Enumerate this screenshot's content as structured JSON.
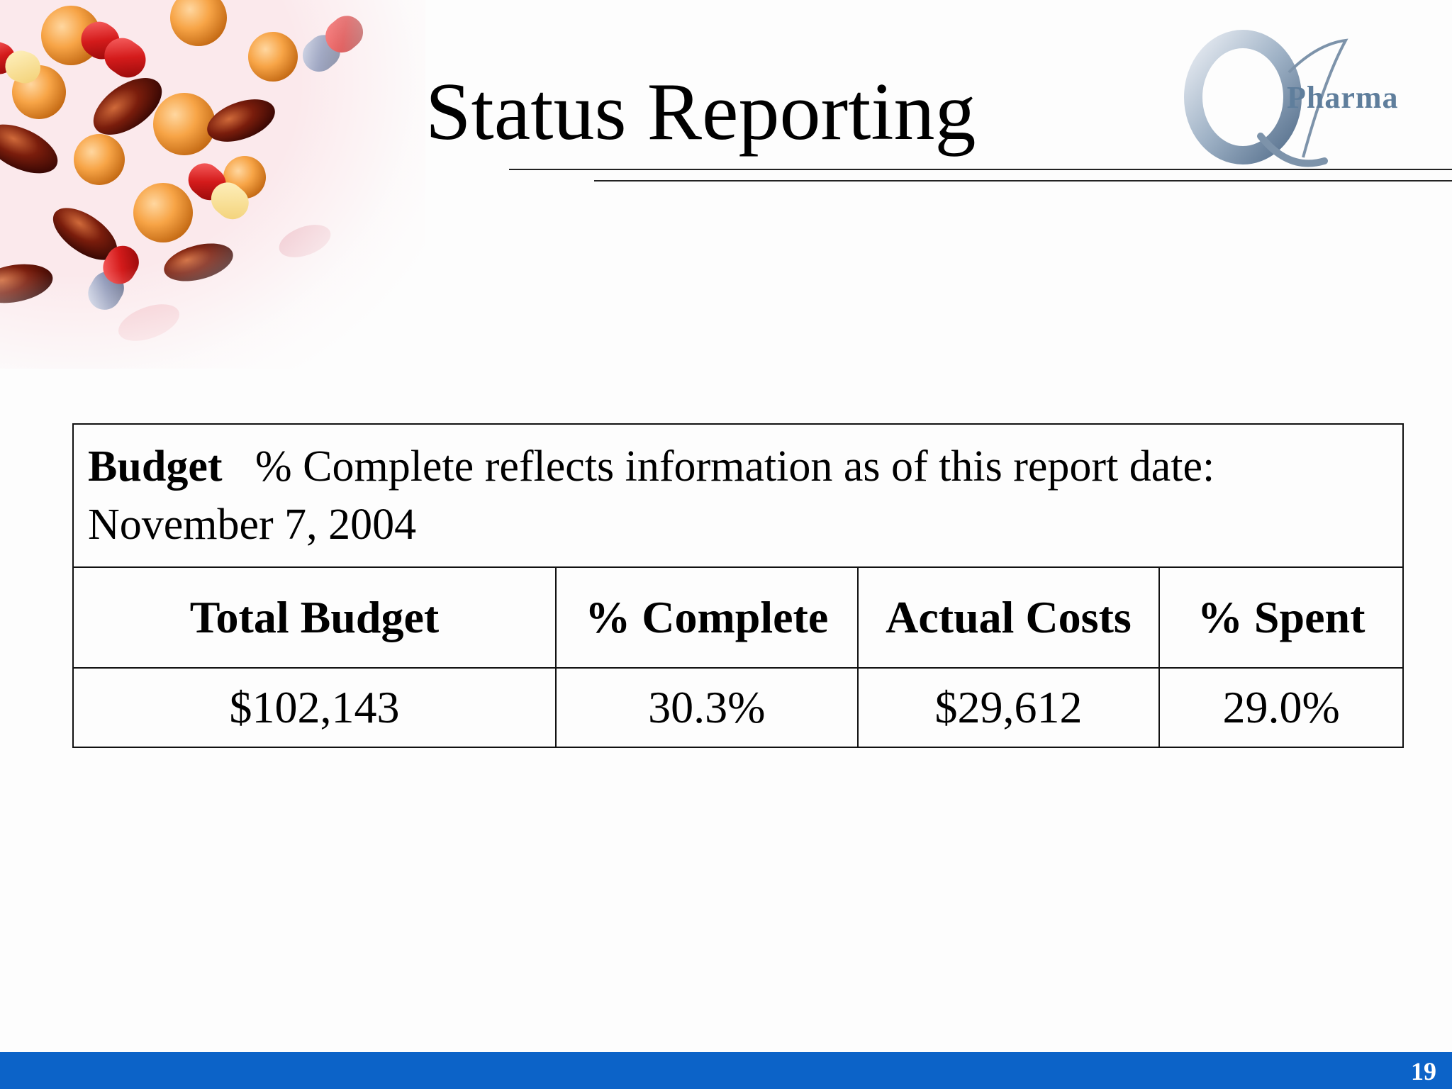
{
  "slide": {
    "title": "Status Reporting",
    "logo_text": "Pharma",
    "page_number": "19",
    "accent_color": "#0c63c8"
  },
  "table": {
    "caption_bold": "Budget",
    "caption_text": "% Complete reflects information as of this report date: November 7, 2004",
    "headers": [
      "Total Budget",
      "% Complete",
      "Actual Costs",
      "% Spent"
    ],
    "values": [
      "$102,143",
      "30.3%",
      "$29,612",
      "29.0%"
    ]
  }
}
